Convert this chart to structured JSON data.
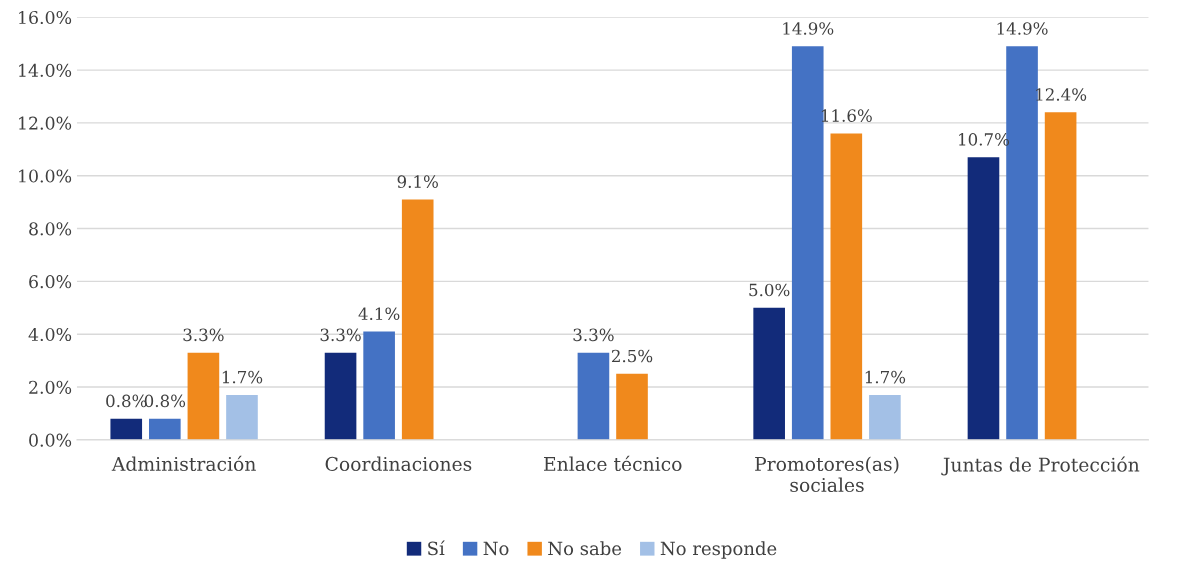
{
  "chart_data": {
    "type": "bar",
    "categories": [
      "Administración",
      "Coordinaciones",
      "Enlace técnico",
      "Promotores(as)\nsociales",
      "Juntas de Protección"
    ],
    "series": [
      {
        "name": "Sí",
        "color": "#122b7a",
        "values": [
          0.8,
          3.3,
          null,
          5.0,
          10.7
        ],
        "value_labels": [
          "0.8%",
          "3.3%",
          null,
          "5.0%",
          "10.7%"
        ]
      },
      {
        "name": "No",
        "color": "#4472c4",
        "values": [
          0.8,
          4.1,
          3.3,
          14.9,
          14.9
        ],
        "value_labels": [
          "0.8%",
          "4.1%",
          "3.3%",
          "14.9%",
          "14.9%"
        ]
      },
      {
        "name": "No sabe",
        "color": "#f0891c",
        "values": [
          3.3,
          9.1,
          2.5,
          11.6,
          12.4
        ],
        "value_labels": [
          "3.3%",
          "9.1%",
          "2.5%",
          "11.6%",
          "12.4%"
        ]
      },
      {
        "name": "No responde",
        "color": "#a3c0e6",
        "values": [
          1.7,
          null,
          null,
          1.7,
          null
        ],
        "value_labels": [
          "1.7%",
          null,
          null,
          "1.7%",
          null
        ]
      }
    ],
    "ylim": [
      0,
      16
    ],
    "yticks": [
      {
        "value": 0,
        "label": "0.0%"
      },
      {
        "value": 2,
        "label": "2.0%"
      },
      {
        "value": 4,
        "label": "4.0%"
      },
      {
        "value": 6,
        "label": "6.0%"
      },
      {
        "value": 8,
        "label": "8.0%"
      },
      {
        "value": 10,
        "label": "10.0%"
      },
      {
        "value": 12,
        "label": "12.0%"
      },
      {
        "value": 14,
        "label": "14.0%"
      },
      {
        "value": 16,
        "label": "16.0%"
      }
    ],
    "grid": "y",
    "legend": "bottom"
  }
}
